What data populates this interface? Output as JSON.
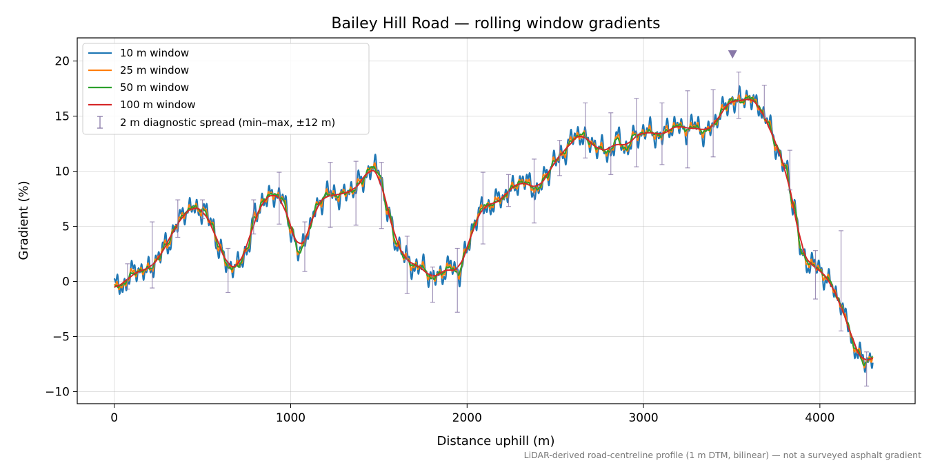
{
  "chart_data": {
    "type": "line",
    "title": "Bailey Hill Road — rolling window gradients",
    "xlabel": "Distance uphill (m)",
    "ylabel": "Gradient (%)",
    "xlim": [
      -210,
      4540
    ],
    "ylim": [
      -11.1,
      22.1
    ],
    "xticks": [
      0,
      1000,
      2000,
      3000,
      4000
    ],
    "xtick_labels": [
      "0",
      "1000",
      "2000",
      "3000",
      "4000"
    ],
    "yticks": [
      -10,
      -5,
      0,
      5,
      10,
      15,
      20
    ],
    "ytick_labels": [
      "−10",
      "−5",
      "0",
      "5",
      "10",
      "15",
      "20"
    ],
    "grid": true,
    "legend_position": "upper left",
    "footnote": "LiDAR-derived road-centreline profile (1 m DTM, bilinear) — not a surveyed asphalt gradient",
    "peak_marker": {
      "x": 3505,
      "y": 20.6,
      "color": "#8878a8"
    },
    "series": [
      {
        "name": "10 m window",
        "color": "#1f77b4",
        "window": 10
      },
      {
        "name": "25 m window",
        "color": "#ff7f0e",
        "window": 25
      },
      {
        "name": "50 m window",
        "color": "#2ca02c",
        "window": 50
      },
      {
        "name": "100 m window",
        "color": "#d62728",
        "window": 100
      }
    ],
    "profile": {
      "x": [
        0,
        50,
        100,
        150,
        200,
        250,
        300,
        350,
        400,
        450,
        500,
        550,
        600,
        650,
        700,
        750,
        800,
        850,
        900,
        950,
        1000,
        1050,
        1100,
        1150,
        1200,
        1250,
        1300,
        1350,
        1400,
        1450,
        1500,
        1550,
        1600,
        1650,
        1700,
        1750,
        1800,
        1850,
        1900,
        1950,
        2000,
        2050,
        2100,
        2150,
        2200,
        2250,
        2300,
        2350,
        2400,
        2450,
        2500,
        2550,
        2600,
        2650,
        2700,
        2750,
        2800,
        2850,
        2900,
        2950,
        3000,
        3050,
        3100,
        3150,
        3200,
        3250,
        3300,
        3350,
        3400,
        3450,
        3500,
        3550,
        3600,
        3650,
        3700,
        3750,
        3800,
        3850,
        3900,
        3950,
        4000,
        4050,
        4100,
        4150,
        4200,
        4250,
        4300
      ],
      "y": [
        -0.6,
        -0.2,
        0.6,
        1.0,
        1.2,
        2.0,
        3.5,
        5.0,
        6.2,
        6.8,
        6.5,
        5.2,
        3.0,
        1.2,
        1.3,
        3.0,
        5.8,
        7.5,
        8.0,
        7.5,
        5.0,
        2.5,
        4.5,
        7.0,
        7.8,
        7.8,
        8.0,
        8.2,
        9.0,
        10.4,
        9.8,
        6.5,
        3.5,
        2.0,
        1.5,
        1.2,
        0.2,
        0.8,
        1.2,
        0.8,
        3.0,
        5.5,
        7.0,
        7.0,
        7.5,
        8.5,
        9.0,
        8.8,
        8.4,
        9.5,
        11.0,
        11.8,
        12.8,
        13.5,
        12.5,
        12.0,
        11.8,
        12.8,
        12.0,
        13.3,
        13.4,
        13.6,
        13.2,
        13.8,
        14.2,
        13.8,
        14.0,
        13.6,
        14.2,
        15.5,
        16.6,
        16.2,
        16.8,
        16.0,
        14.5,
        12.5,
        10.5,
        7.0,
        2.5,
        1.5,
        1.0,
        0.2,
        -1.5,
        -3.5,
        -6.0,
        -7.5,
        -6.8
      ]
    },
    "error_bars": {
      "name": "2 m diagnostic spread (min–max, ±12 m)",
      "color": "#8878a8",
      "points": [
        {
          "x": 75,
          "y": 0.4,
          "lo": -0.7,
          "hi": 1.6
        },
        {
          "x": 215,
          "y": 1.5,
          "lo": -0.6,
          "hi": 5.4
        },
        {
          "x": 360,
          "y": 5.7,
          "lo": 4.0,
          "hi": 7.4
        },
        {
          "x": 500,
          "y": 6.5,
          "lo": 5.7,
          "hi": 7.4
        },
        {
          "x": 645,
          "y": 1.1,
          "lo": -1.0,
          "hi": 3.0
        },
        {
          "x": 790,
          "y": 5.8,
          "lo": 4.3,
          "hi": 7.4
        },
        {
          "x": 935,
          "y": 7.5,
          "lo": 5.2,
          "hi": 9.9
        },
        {
          "x": 1080,
          "y": 3.2,
          "lo": 0.9,
          "hi": 5.4
        },
        {
          "x": 1225,
          "y": 7.8,
          "lo": 4.9,
          "hi": 10.8
        },
        {
          "x": 1370,
          "y": 8.2,
          "lo": 5.1,
          "hi": 10.9
        },
        {
          "x": 1515,
          "y": 7.9,
          "lo": 4.8,
          "hi": 10.8
        },
        {
          "x": 1660,
          "y": 1.6,
          "lo": -1.1,
          "hi": 4.1
        },
        {
          "x": 1805,
          "y": 0.2,
          "lo": -1.9,
          "hi": 1.3
        },
        {
          "x": 1945,
          "y": 0.5,
          "lo": -2.8,
          "hi": 3.0
        },
        {
          "x": 2090,
          "y": 6.4,
          "lo": 3.4,
          "hi": 9.9
        },
        {
          "x": 2235,
          "y": 8.3,
          "lo": 6.8,
          "hi": 9.7
        },
        {
          "x": 2380,
          "y": 8.6,
          "lo": 5.3,
          "hi": 11.1
        },
        {
          "x": 2525,
          "y": 10.8,
          "lo": 9.6,
          "hi": 12.8
        },
        {
          "x": 2670,
          "y": 13.8,
          "lo": 11.2,
          "hi": 16.2
        },
        {
          "x": 2815,
          "y": 12.3,
          "lo": 9.7,
          "hi": 15.3
        },
        {
          "x": 2960,
          "y": 13.0,
          "lo": 10.4,
          "hi": 16.6
        },
        {
          "x": 3105,
          "y": 13.5,
          "lo": 10.6,
          "hi": 16.2
        },
        {
          "x": 3250,
          "y": 14.2,
          "lo": 10.3,
          "hi": 17.3
        },
        {
          "x": 3395,
          "y": 14.2,
          "lo": 11.3,
          "hi": 17.4
        },
        {
          "x": 3540,
          "y": 17.0,
          "lo": 14.8,
          "hi": 19.0
        },
        {
          "x": 3685,
          "y": 16.8,
          "lo": 14.8,
          "hi": 17.8
        },
        {
          "x": 3830,
          "y": 10.5,
          "lo": 8.3,
          "hi": 11.9
        },
        {
          "x": 3975,
          "y": 1.0,
          "lo": -1.6,
          "hi": 2.8
        },
        {
          "x": 4120,
          "y": 0.5,
          "lo": -4.5,
          "hi": 4.6
        },
        {
          "x": 4265,
          "y": -8.0,
          "lo": -9.5,
          "hi": -6.4
        }
      ]
    }
  }
}
